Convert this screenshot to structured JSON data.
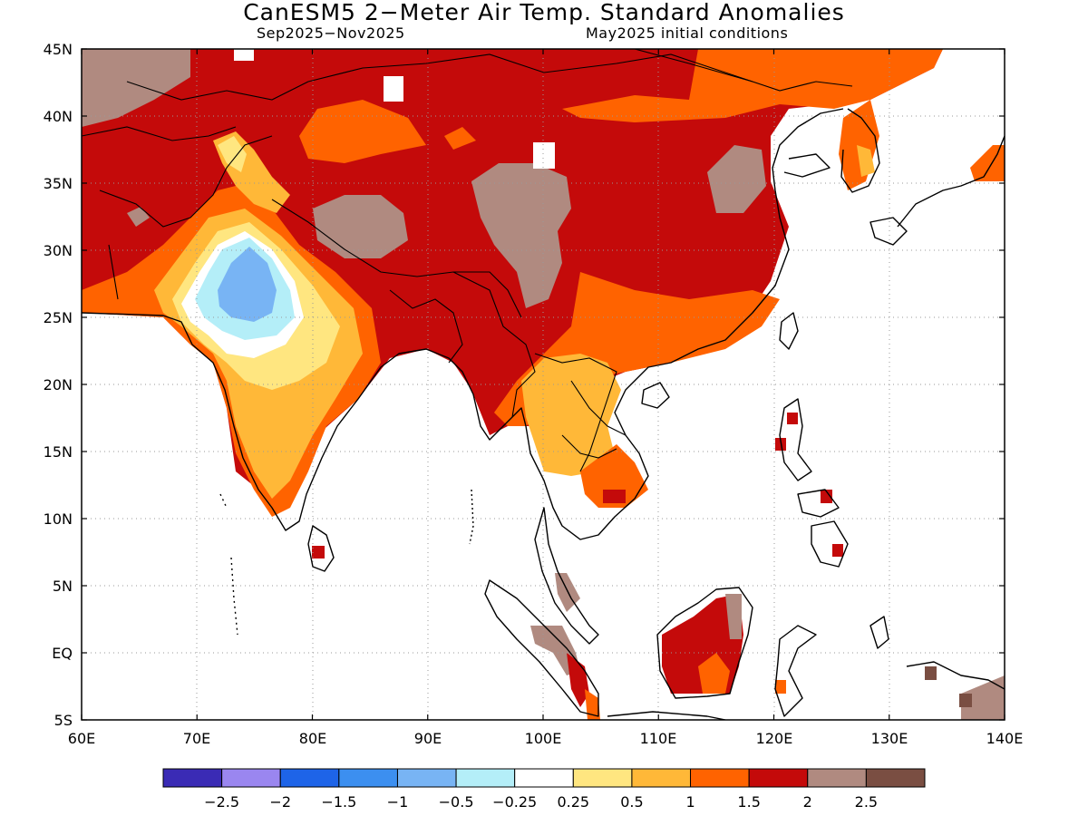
{
  "title": "CanESM5 2−Meter Air Temp. Standard Anomalies",
  "subtitle_left": "Sep2025−Nov2025",
  "subtitle_right": "May2025 initial conditions",
  "map": {
    "lon_range": [
      60,
      140
    ],
    "lat_range": [
      -5,
      45
    ],
    "lat_labels": [
      "45N",
      "40N",
      "35N",
      "30N",
      "25N",
      "20N",
      "15N",
      "10N",
      "5N",
      "EQ",
      "5S"
    ],
    "lon_labels": [
      "60E",
      "70E",
      "80E",
      "90E",
      "100E",
      "110E",
      "120E",
      "130E",
      "140E"
    ],
    "gridlines": "dotted"
  },
  "legend": {
    "colors": [
      "#3a2bb5",
      "#9a86f0",
      "#1e64e8",
      "#3c8ff0",
      "#78b4f4",
      "#b4eef8",
      "#ffffff",
      "#ffe680",
      "#ffb838",
      "#ff6300",
      "#c40a0a",
      "#b08a80",
      "#7a4e42"
    ],
    "labels": [
      "−2.5",
      "−2",
      "−1.5",
      "−1",
      "−0.5",
      "−0.25",
      "0.25",
      "0.5",
      "1",
      "1.5",
      "2",
      "2.5"
    ]
  }
}
